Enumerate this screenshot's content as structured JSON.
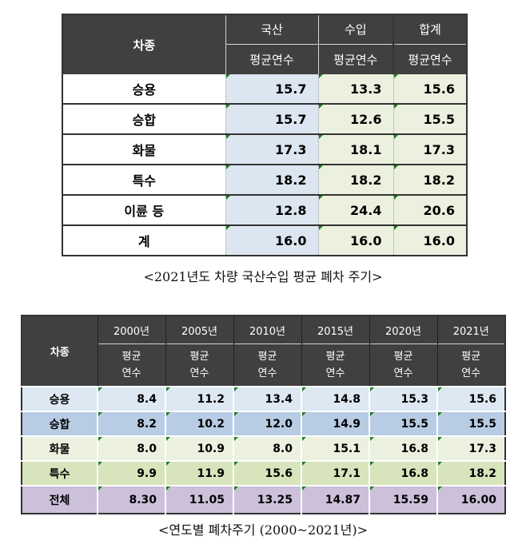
{
  "table1": {
    "header_label": "차종",
    "groups": [
      "국산",
      "수입",
      "합계"
    ],
    "sub_label": "평균연수",
    "rows": [
      {
        "label": "승용",
        "values": [
          "15.7",
          "13.3",
          "15.6"
        ]
      },
      {
        "label": "승합",
        "values": [
          "15.7",
          "12.6",
          "15.5"
        ]
      },
      {
        "label": "화물",
        "values": [
          "17.3",
          "18.1",
          "17.3"
        ]
      },
      {
        "label": "특수",
        "values": [
          "18.2",
          "18.2",
          "18.2"
        ]
      },
      {
        "label": "이륜 등",
        "values": [
          "12.8",
          "24.4",
          "20.6"
        ]
      },
      {
        "label": "계",
        "values": [
          "16.0",
          "16.0",
          "16.0"
        ]
      }
    ],
    "caption": "<2021년도 차량 국산수입 평균 폐차 주기>"
  },
  "table2": {
    "header_label": "차종",
    "years": [
      "2000년",
      "2005년",
      "2010년",
      "2015년",
      "2020년",
      "2021년"
    ],
    "sub_label_1": "평균",
    "sub_label_2": "연수",
    "rows": [
      {
        "label": "승용",
        "color": "#dde8f3",
        "values": [
          "8.4",
          "11.2",
          "13.4",
          "14.8",
          "15.3",
          "15.6"
        ]
      },
      {
        "label": "승합",
        "color": "#b8cce4",
        "values": [
          "8.2",
          "10.2",
          "12.0",
          "14.9",
          "15.5",
          "15.5"
        ]
      },
      {
        "label": "화물",
        "color": "#ebf1de",
        "values": [
          "8.0",
          "10.9",
          "8.0",
          "15.1",
          "16.8",
          "17.3"
        ]
      },
      {
        "label": "특수",
        "color": "#d7e4bc",
        "values": [
          "9.9",
          "11.9",
          "15.6",
          "17.1",
          "16.8",
          "18.2"
        ]
      },
      {
        "label": "전체",
        "color": "#ccc0da",
        "values": [
          "8.30",
          "11.05",
          "13.25",
          "14.87",
          "15.59",
          "16.00"
        ]
      }
    ],
    "caption": "<연도별 폐차주기 (2000~2021년)>"
  }
}
